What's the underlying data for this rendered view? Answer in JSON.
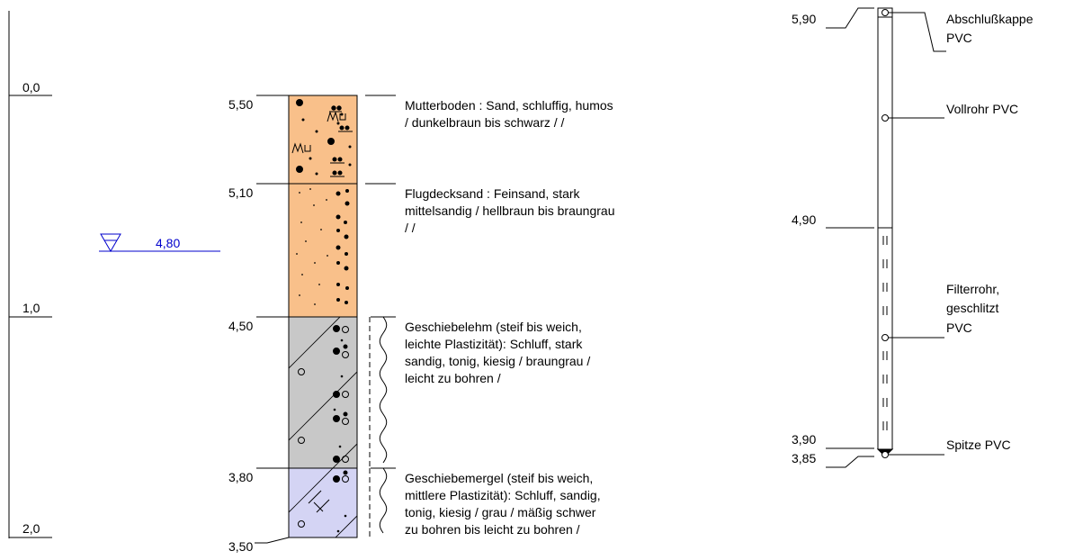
{
  "depth_scale": {
    "labels": [
      "0,0",
      "1,0",
      "2,0"
    ]
  },
  "water_level": {
    "value": "4,80",
    "color": "#0000cc"
  },
  "layers": [
    {
      "top_elev": "5,50",
      "color": "#f9c08a",
      "desc": [
        "Mutterboden : Sand, schluffig, humos",
        "/ dunkelbraun bis schwarz  /  /"
      ]
    },
    {
      "top_elev": "5,10",
      "color": "#f9c08a",
      "desc": [
        "Flugdecksand : Feinsand, stark",
        "mittelsandig / hellbraun bis braungrau",
        "/  /"
      ]
    },
    {
      "top_elev": "4,50",
      "color": "#c8c8c8",
      "desc": [
        "Geschiebelehm (steif bis weich,",
        "leichte Plastizität): Schluff, stark",
        "sandig, tonig, kiesig / braungrau  /",
        "leicht zu bohren /"
      ]
    },
    {
      "top_elev": "3,80",
      "color": "#d4d4f4",
      "desc": [
        "Geschiebemergel (steif bis weich,",
        "mittlere Plastizität): Schluff, sandig,",
        "tonig, kiesig / grau  / mäßig schwer",
        "zu bohren bis leicht zu bohren /"
      ]
    }
  ],
  "bottom_elev": "3,50",
  "well": {
    "elevations": [
      "5,90",
      "4,90",
      "3,90",
      "3,85"
    ],
    "labels": {
      "cap": [
        "Abschlußkappe",
        "PVC"
      ],
      "pipe": [
        "Vollrohr PVC"
      ],
      "filter": [
        "Filterrohr,",
        "geschlitzt",
        "PVC"
      ],
      "tip": [
        "Spitze PVC"
      ]
    }
  }
}
